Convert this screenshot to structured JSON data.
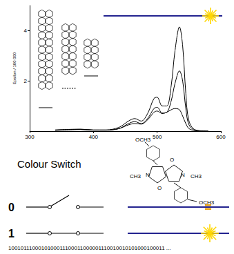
{
  "chart_data": {
    "type": "line",
    "y_label": "Epsilon / 100 000",
    "x": [
      340,
      380,
      400,
      420,
      440,
      455,
      465,
      475,
      485,
      495,
      500,
      508,
      515,
      522,
      528,
      535,
      540,
      545,
      550,
      560,
      580
    ],
    "series": [
      {
        "color": "#000000",
        "values": [
          0.05,
          0.08,
          0.05,
          0.05,
          0.15,
          0.4,
          0.5,
          0.4,
          0.7,
          1.3,
          1.35,
          1.0,
          1.0,
          1.8,
          3.2,
          4.15,
          3.4,
          1.5,
          0.4,
          0.05,
          0
        ]
      },
      {
        "color": "#000000",
        "values": [
          0.04,
          0.07,
          0.04,
          0.04,
          0.1,
          0.3,
          0.38,
          0.3,
          0.5,
          0.9,
          0.95,
          0.72,
          0.75,
          1.2,
          1.9,
          2.4,
          2.0,
          0.9,
          0.25,
          0.03,
          0
        ]
      },
      {
        "color": "#000000",
        "values": [
          0.03,
          0.06,
          0.04,
          0.04,
          0.1,
          0.25,
          0.3,
          0.28,
          0.45,
          0.75,
          0.8,
          0.7,
          0.75,
          0.85,
          0.9,
          0.85,
          0.6,
          0.3,
          0.1,
          0.02,
          0
        ]
      }
    ],
    "xlim": [
      300,
      600
    ],
    "ylim": [
      0,
      5
    ],
    "xticks": [
      300,
      400,
      500,
      600
    ],
    "yticks": [
      2,
      4
    ],
    "grid": false
  },
  "switch": {
    "title": "Colour Switch",
    "states": [
      "0",
      "1"
    ],
    "bits": "1001011100010100011100011000001110010010101000100011 ..."
  },
  "molecule": {
    "labels": [
      "OCH3",
      "CH3",
      "N",
      "O",
      "N",
      "CH3",
      "O",
      "OCH3"
    ]
  }
}
